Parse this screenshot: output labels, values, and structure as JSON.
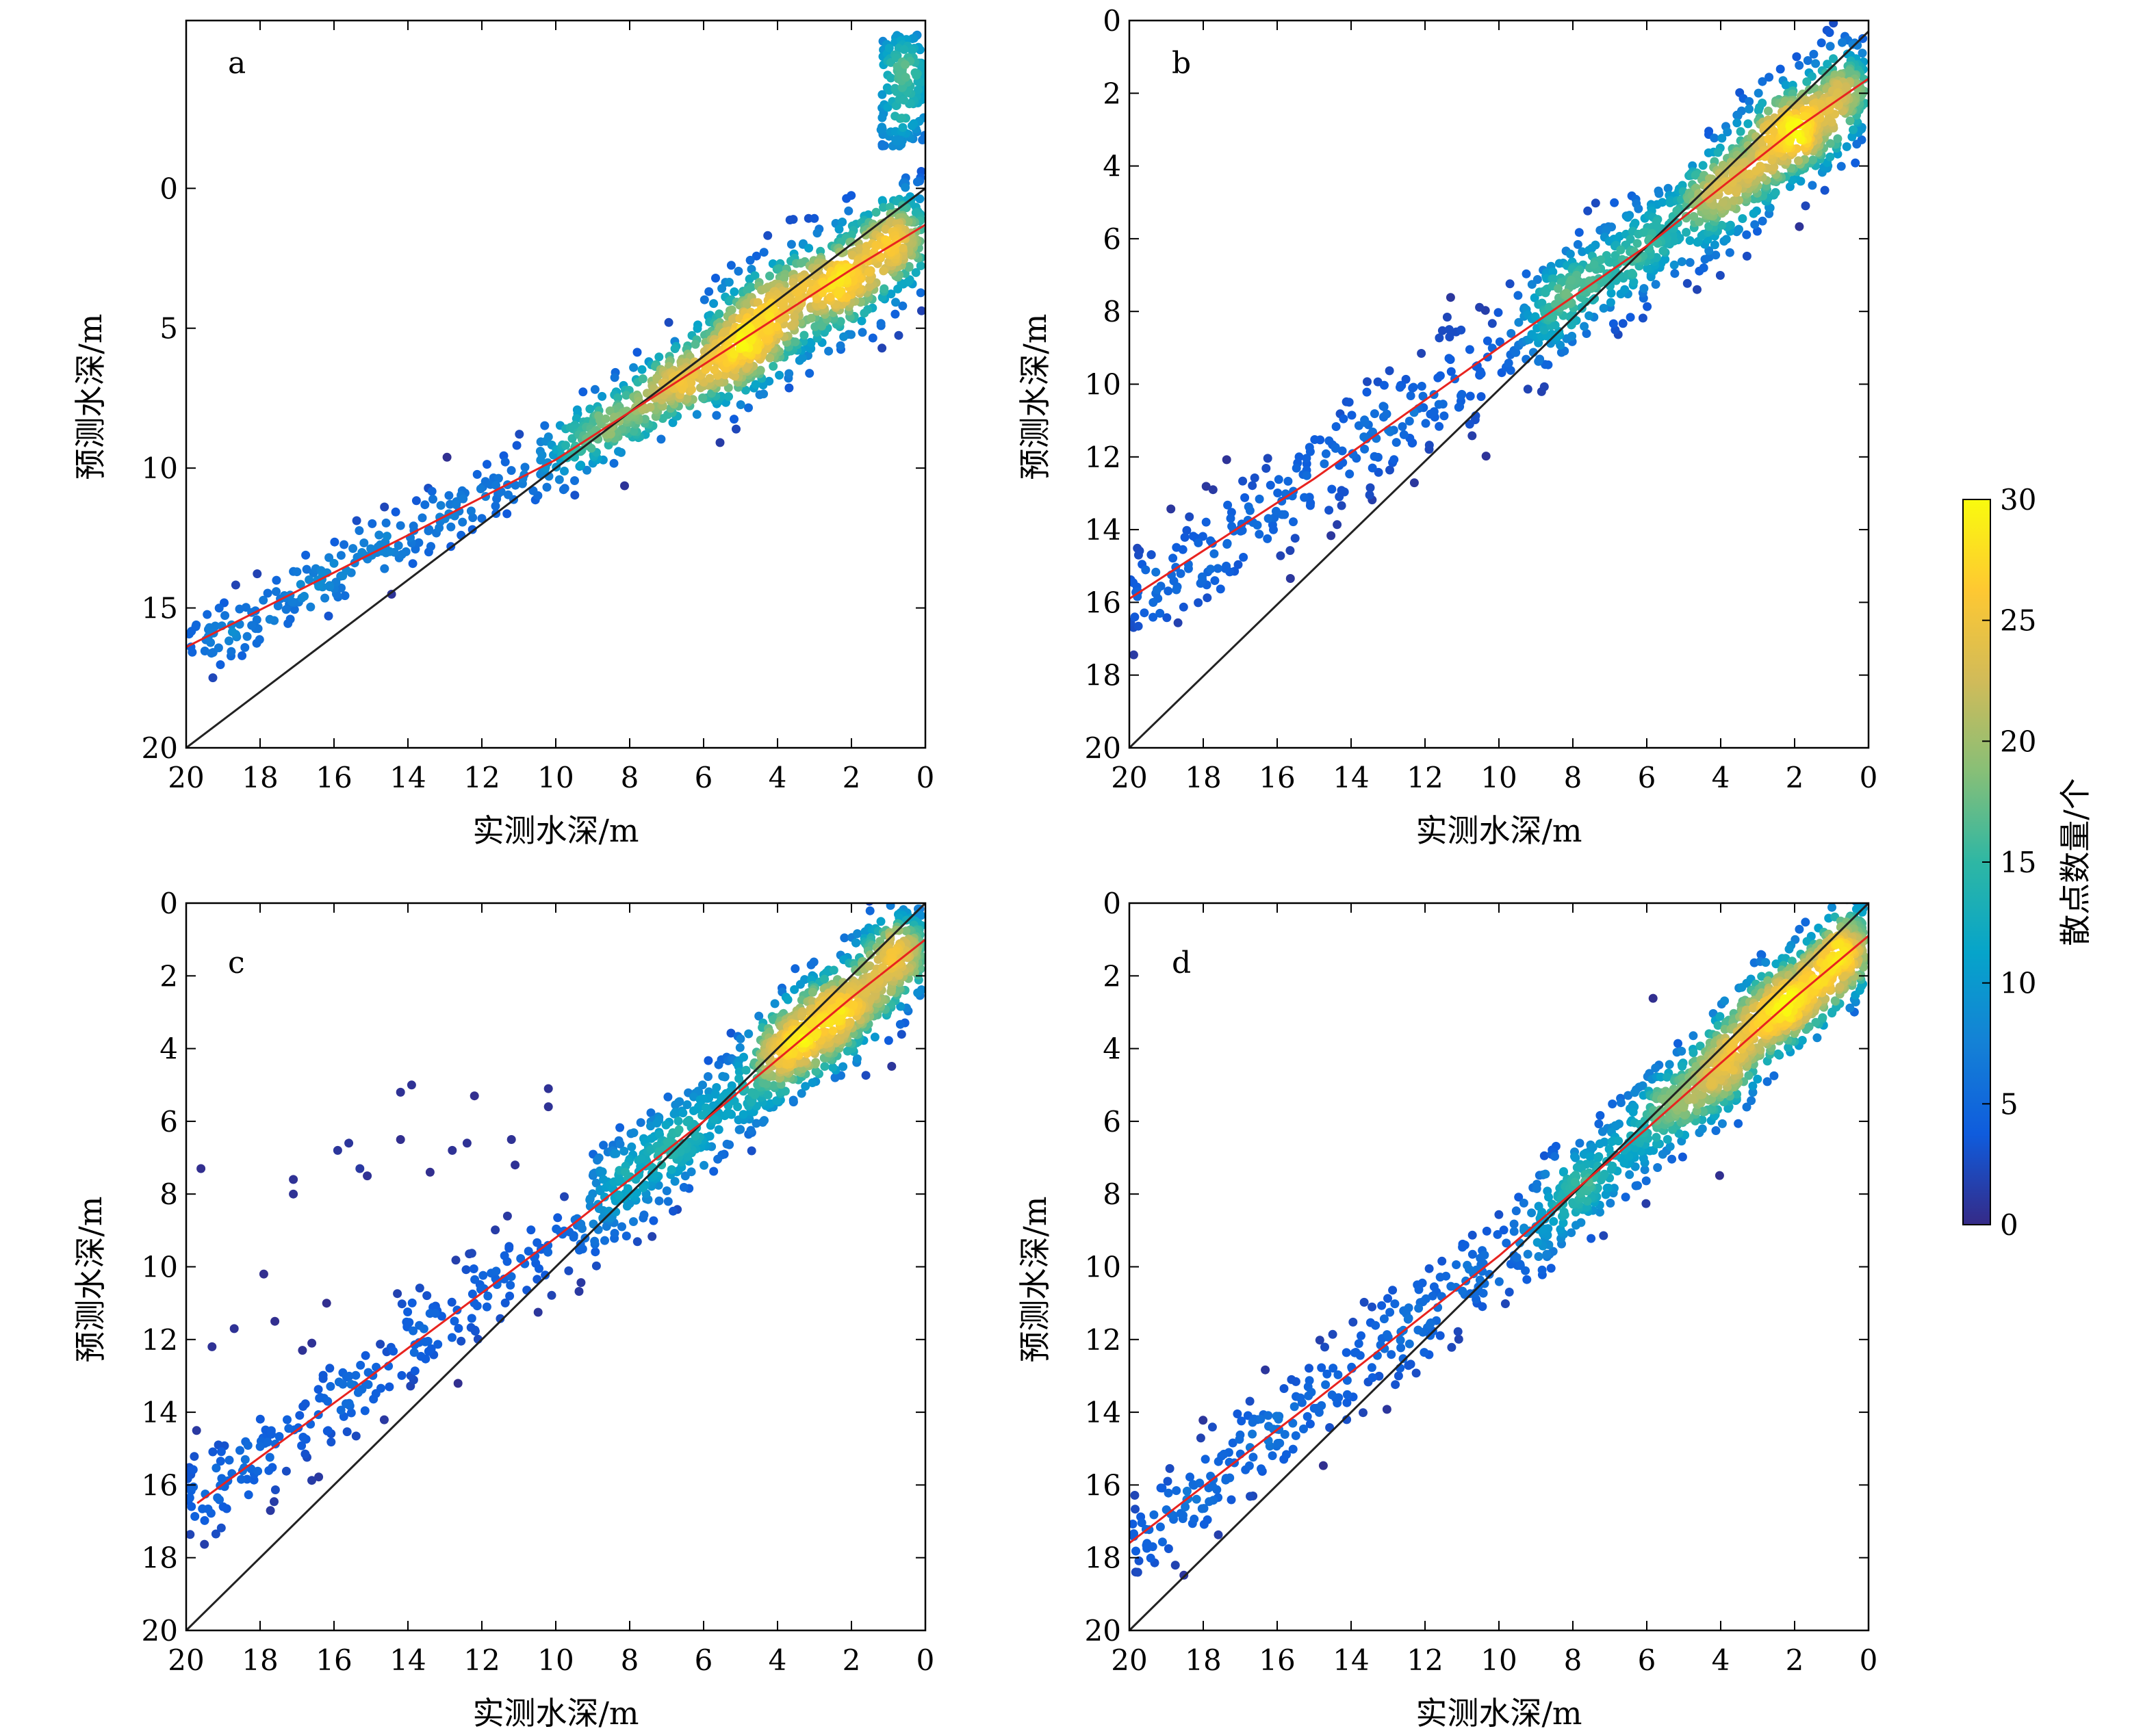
{
  "figure": {
    "xlabel": "实测水深/m",
    "ylabel": "预测水深/m",
    "colorbar": {
      "label": "散点数量/个",
      "range": [
        0,
        30
      ],
      "ticks": [
        "0",
        "5",
        "10",
        "15",
        "20",
        "25",
        "30"
      ],
      "colormap": "parula",
      "colors": [
        "#352a87",
        "#0f5cdd",
        "#1481d6",
        "#06a4ca",
        "#2eb7a4",
        "#87bf77",
        "#d1bb59",
        "#fec832",
        "#f9fb0e"
      ]
    }
  },
  "chart_data": [
    {
      "panel": "a",
      "type": "scatter",
      "xlabel": "实测水深/m",
      "ylabel": "预测水深/m",
      "xlim": [
        20,
        0
      ],
      "ylim": [
        20,
        -6
      ],
      "xticks": [
        "20",
        "18",
        "16",
        "14",
        "12",
        "10",
        "8",
        "6",
        "4",
        "2",
        "0"
      ],
      "yticks": [
        "0",
        "5",
        "10",
        "15",
        "20"
      ],
      "reference_line": [
        [
          20,
          20
        ],
        [
          0,
          0
        ]
      ],
      "fit_line": [
        [
          20,
          16.4
        ],
        [
          14,
          12.4
        ],
        [
          10,
          9.7
        ],
        [
          6,
          6.3
        ],
        [
          4,
          4.6
        ],
        [
          2,
          2.9
        ],
        [
          0,
          1.3
        ]
      ],
      "cloud": [
        {
          "x": [
            0.1,
            6
          ],
          "line": "fit",
          "spread": 2.0,
          "count": 900
        },
        {
          "x": [
            0,
            1.2
          ],
          "y": [
            -1.5,
            -5.5
          ],
          "count": 140
        },
        {
          "x": [
            6,
            9.5
          ],
          "line": "fit",
          "spread": 1.3,
          "count": 300
        },
        {
          "x": [
            9.5,
            20
          ],
          "line": "fit",
          "spread": 1.2,
          "count": 260
        }
      ]
    },
    {
      "panel": "b",
      "type": "scatter",
      "xlabel": "实测水深/m",
      "ylabel": "预测水深/m",
      "xlim": [
        20,
        0
      ],
      "ylim": [
        20,
        0
      ],
      "xticks": [
        "20",
        "18",
        "16",
        "14",
        "12",
        "10",
        "8",
        "6",
        "4",
        "2",
        "0"
      ],
      "yticks": [
        "0",
        "2",
        "4",
        "6",
        "8",
        "10",
        "12",
        "14",
        "16",
        "18",
        "20"
      ],
      "reference_line": [
        [
          20,
          20
        ],
        [
          0,
          0.3
        ]
      ],
      "fit_line": [
        [
          20,
          15.9
        ],
        [
          15,
          12.6
        ],
        [
          10,
          9.0
        ],
        [
          6,
          6.2
        ],
        [
          4,
          4.6
        ],
        [
          2,
          3.0
        ],
        [
          0,
          1.6
        ]
      ],
      "cloud": [
        {
          "x": [
            0.1,
            4.5
          ],
          "line": "fit",
          "spread": 1.5,
          "count": 700
        },
        {
          "x": [
            4.5,
            9
          ],
          "line": "fit",
          "spread": 1.4,
          "count": 380
        },
        {
          "x": [
            9,
            20
          ],
          "line": "fit",
          "spread": 1.5,
          "count": 300
        }
      ]
    },
    {
      "panel": "c",
      "type": "scatter",
      "xlabel": "实测水深/m",
      "ylabel": "预测水深/m",
      "xlim": [
        20,
        0
      ],
      "ylim": [
        20,
        0
      ],
      "xticks": [
        "20",
        "18",
        "16",
        "14",
        "12",
        "10",
        "8",
        "6",
        "4",
        "2",
        "0"
      ],
      "yticks": [
        "0",
        "2",
        "4",
        "6",
        "8",
        "10",
        "12",
        "14",
        "16",
        "18",
        "20"
      ],
      "reference_line": [
        [
          20,
          20
        ],
        [
          0,
          0
        ]
      ],
      "fit_line": [
        [
          19.7,
          16.5
        ],
        [
          15,
          13.0
        ],
        [
          10,
          9.2
        ],
        [
          6,
          6.0
        ],
        [
          4,
          4.3
        ],
        [
          2,
          2.6
        ],
        [
          0,
          1.0
        ]
      ],
      "cloud": [
        {
          "x": [
            0.1,
            4.5
          ],
          "line": "fit",
          "spread": 1.4,
          "count": 800
        },
        {
          "x": [
            4.5,
            9
          ],
          "line": "fit",
          "spread": 1.3,
          "count": 350
        },
        {
          "x": [
            9,
            20
          ],
          "line": "fit",
          "spread": 1.3,
          "count": 260
        }
      ],
      "outliers": [
        [
          19.6,
          7.3
        ],
        [
          17.1,
          7.6
        ],
        [
          17.1,
          8.0
        ],
        [
          15.9,
          6.8
        ],
        [
          15.6,
          6.6
        ],
        [
          15.3,
          7.3
        ],
        [
          15.1,
          7.5
        ],
        [
          14.2,
          5.2
        ],
        [
          13.9,
          5.0
        ],
        [
          14.2,
          6.5
        ],
        [
          13.4,
          7.4
        ],
        [
          12.8,
          6.8
        ],
        [
          12.4,
          6.6
        ],
        [
          12.2,
          5.3
        ],
        [
          11.2,
          6.5
        ],
        [
          11.1,
          7.2
        ],
        [
          10.2,
          5.1
        ],
        [
          10.2,
          5.6
        ],
        [
          19.3,
          12.2
        ],
        [
          18.7,
          11.7
        ],
        [
          17.9,
          10.2
        ],
        [
          17.6,
          11.5
        ],
        [
          16.2,
          11.0
        ],
        [
          16.6,
          12.1
        ]
      ]
    },
    {
      "panel": "d",
      "type": "scatter",
      "xlabel": "实测水深/m",
      "ylabel": "预测水深/m",
      "xlim": [
        20,
        0
      ],
      "ylim": [
        20,
        0
      ],
      "xticks": [
        "20",
        "18",
        "16",
        "14",
        "12",
        "10",
        "8",
        "6",
        "4",
        "2",
        "0"
      ],
      "yticks": [
        "0",
        "2",
        "4",
        "6",
        "8",
        "10",
        "12",
        "14",
        "16",
        "18",
        "20"
      ],
      "reference_line": [
        [
          20,
          20
        ],
        [
          0,
          0
        ]
      ],
      "fit_line": [
        [
          20,
          17.6
        ],
        [
          15,
          13.7
        ],
        [
          10,
          9.7
        ],
        [
          6,
          6.2
        ],
        [
          4,
          4.4
        ],
        [
          2,
          2.6
        ],
        [
          0,
          0.9
        ]
      ],
      "cloud": [
        {
          "x": [
            0.1,
            4.5
          ],
          "line": "fit",
          "spread": 1.3,
          "count": 800
        },
        {
          "x": [
            4.5,
            9
          ],
          "line": "fit",
          "spread": 1.3,
          "count": 400
        },
        {
          "x": [
            9,
            20
          ],
          "line": "fit",
          "spread": 1.3,
          "count": 300
        }
      ]
    }
  ]
}
